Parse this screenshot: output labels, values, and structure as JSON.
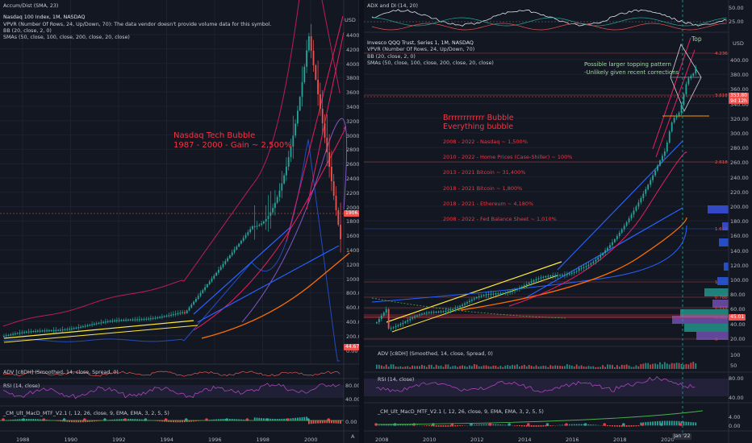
{
  "left_chart": {
    "legend": [
      "Accum/Dist (SMA, 23)",
      "Nasdaq 100 Index, 1M, NASDAQ",
      "VPVR (Number Of Rows, 24, Up/Down, 70): The data vendor doesn't provide volume data for this symbol.",
      "BB (20, close, 2, 0)",
      "SMAs (50, close, 100, close, 200, close, 20, close)"
    ],
    "annotation": [
      "Nasdaq Tech Bubble",
      "1987 - 2000 - Gain ~ 2,500%"
    ],
    "price_axis": [
      "4400.00",
      "4200.00",
      "4000.00",
      "3800.00",
      "3600.00",
      "3400.00",
      "3200.00",
      "3000.00",
      "2800.00",
      "2600.00",
      "2400.00",
      "2200.00",
      "2000.00",
      "1800.00",
      "1600.00",
      "1400.00",
      "1200.00",
      "1000.00",
      "800.00",
      "600.00",
      "400.00",
      "200.00",
      "0.00"
    ],
    "axis_unit": "USD",
    "price_tag": "1906.12",
    "low_tag": "44.67",
    "adv_label": "ADV [c8DH] (Smoothed, 14, close, Spread, 0)",
    "rsi_label": "RSI (14, close)",
    "macd_label": "_CM_Ult_MacD_MTF_V2.1 (, 12, 26, close, 9, EMA, EMA, 3, 2, 5, 5)",
    "rsi_axis": [
      "80.00",
      "40.00"
    ],
    "macd_axis": [
      "0.00"
    ],
    "years": [
      "1988",
      "1990",
      "1992",
      "1994",
      "1996",
      "1998",
      "2000"
    ],
    "corner": "A"
  },
  "right_chart": {
    "adx_label": "ADX and DI (14, 20)",
    "adx_axis": [
      "50.00",
      "25.00"
    ],
    "legend": [
      "Invesco QQQ Trust, Series 1, 1M, NASDAQ",
      "VPVR (Number Of Rows, 24, Up/Down, 70)",
      "BB (20, close, 2, 0)",
      "SMAs (50, close, 100, close, 200, close, 20, close)"
    ],
    "top_label": "Top",
    "pattern_note": [
      "Possible larger topping pattern",
      "-Unlikely given recent corrections"
    ],
    "bubble_title": [
      "Brrrrrrrrrrrr Bubble",
      "Everything bubble"
    ],
    "bubble_items": [
      "2008 - 2022 - Nasdaq ~ 1,500%",
      "2010 - 2022 - Home Prices (Case-Shiller) ~ 100%",
      "2013 - 2021 Bitcoin ~ 31,400%",
      "2018 - 2021 Bitcoin ~ 1,800%",
      "2018 - 2021 - Ethereum ~ 4,180%",
      "2008 - 2022 - Fed Balance Sheet ~ 1,010%"
    ],
    "price_axis": [
      "400.00",
      "380.00",
      "360.00",
      "340.00",
      "320.00",
      "300.00",
      "280.00",
      "260.00",
      "240.00",
      "220.00",
      "200.00",
      "180.00",
      "160.00",
      "140.00",
      "120.00",
      "100.00",
      "80.00",
      "60.00",
      "40.00",
      "20.00"
    ],
    "axis_unit": "USD",
    "price_tag": [
      "353.80",
      "9d 12h"
    ],
    "fib_labels": [
      "4.236",
      "3.618",
      "2.618",
      "1.618",
      "1",
      "0.786",
      "0.618",
      "0.382",
      "0"
    ],
    "low_tag": "45.01",
    "adv_label": "ADV [c8DH] (Smoothed, 14, close, Spread, 0)",
    "adv_axis": [
      "100",
      "50"
    ],
    "rsi_label": "RSI (14, close)",
    "rsi_axis": [
      "80.00",
      "40.00"
    ],
    "macd_label": "_CM_Ult_MacD_MTF_V2.1 (, 12, 26, close, 9, EMA, EMA, 3, 2, 5, 5)",
    "macd_axis": [
      "4.00",
      "0.00"
    ],
    "years": [
      "2008",
      "2010",
      "2012",
      "2014",
      "2016",
      "2018",
      "2020"
    ],
    "date_tag": "Jan '22"
  },
  "colors": {
    "bg": "#131722",
    "up": "#26a69a",
    "down": "#ef5350",
    "annotation_red": "#f23645",
    "annotation_green": "#a5d6a7",
    "trend_blue": "#2962ff",
    "sma_orange": "#ff6d00",
    "sma_pink": "#e91e63"
  }
}
